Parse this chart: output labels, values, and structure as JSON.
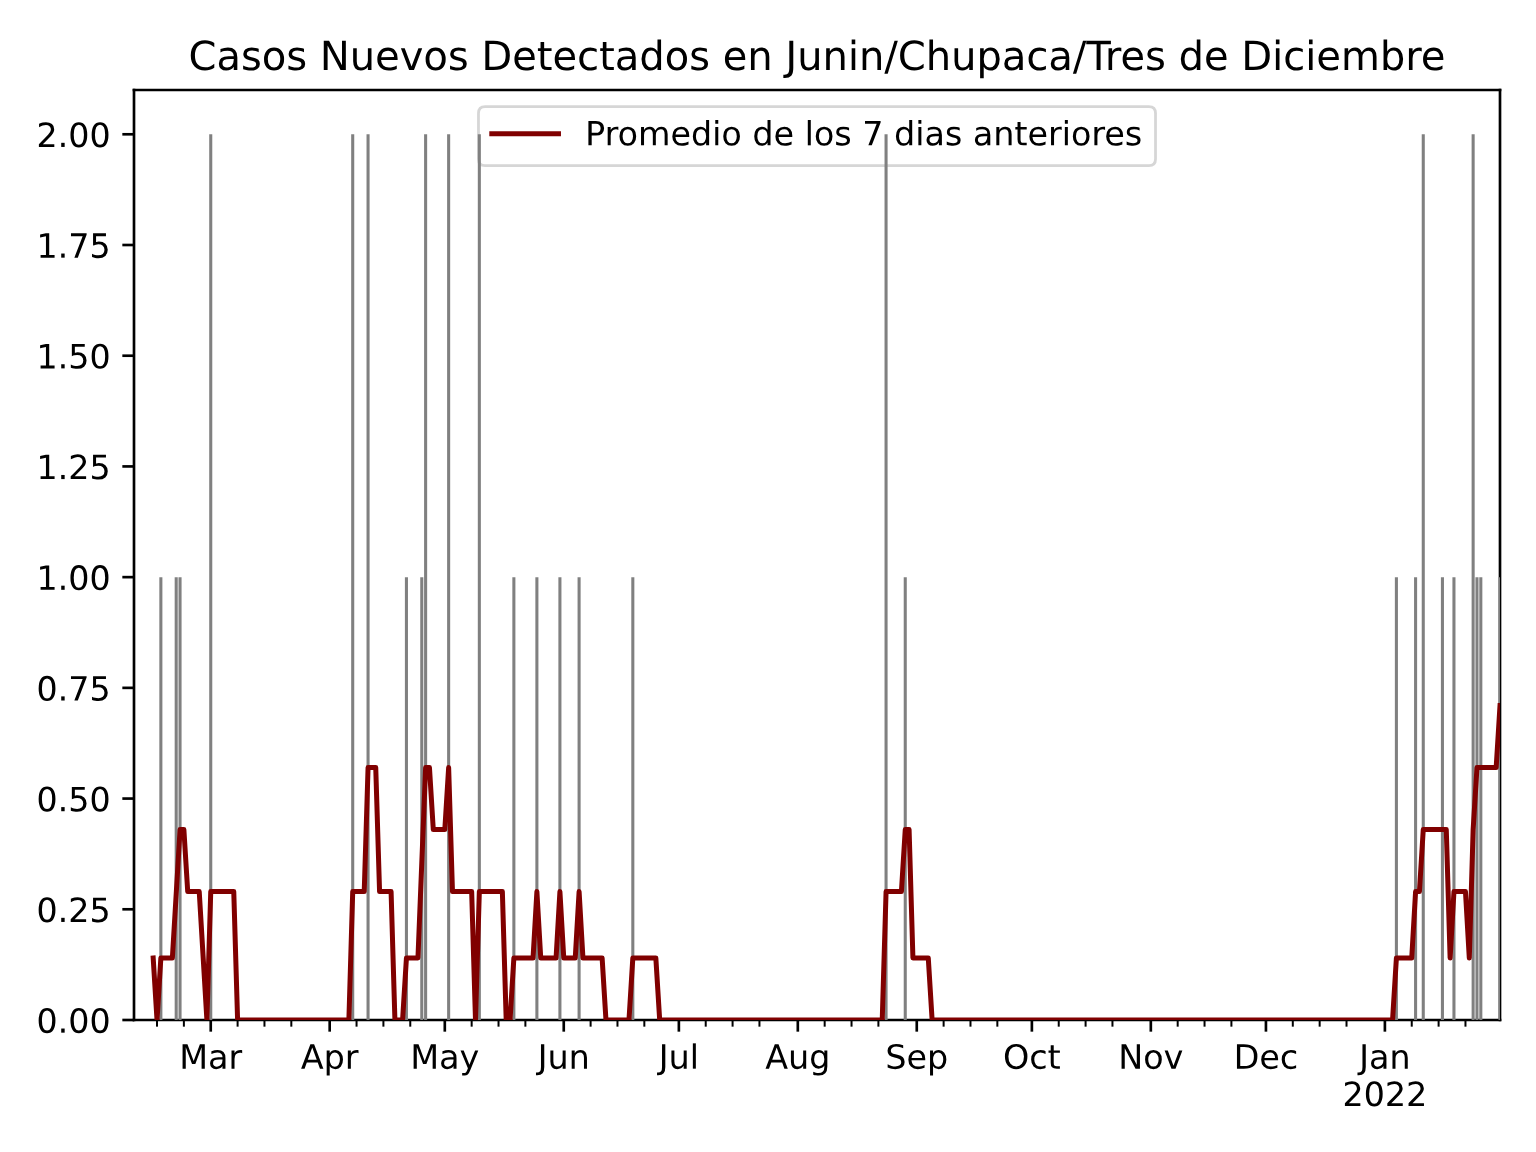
{
  "chart_data": {
    "type": "bar",
    "title": "Casos Nuevos Detectados en Junin/Chupaca/Tres de Diciembre",
    "series": [
      {
        "color": "#808080",
        "x": [
          "2021-02-16",
          "2021-02-20",
          "2021-02-21",
          "2021-03-01",
          "2021-04-07",
          "2021-04-11",
          "2021-04-21",
          "2021-04-25",
          "2021-04-26",
          "2021-05-02",
          "2021-05-10",
          "2021-05-19",
          "2021-05-25",
          "2021-05-31",
          "2021-06-05",
          "2021-06-19",
          "2021-08-24",
          "2021-08-29",
          "2022-01-04",
          "2022-01-09",
          "2022-01-11",
          "2022-01-16",
          "2022-01-19",
          "2022-01-24",
          "2022-01-25",
          "2022-01-26",
          "2022-01-31"
        ],
        "values": [
          1,
          1,
          1,
          2,
          2,
          2,
          1,
          1,
          2,
          2,
          2,
          1,
          1,
          1,
          1,
          1,
          2,
          1,
          1,
          1,
          2,
          1,
          1,
          2,
          1,
          1,
          1
        ]
      },
      {
        "type": "line",
        "name": "Promedio de los 7 dias anteriores",
        "color": "#800000",
        "x": [
          "2021-02-14",
          "2021-02-15",
          "2021-02-16",
          "2021-02-19",
          "2021-02-21",
          "2021-02-22",
          "2021-02-23",
          "2021-02-26",
          "2021-02-28",
          "2021-03-01",
          "2021-03-07",
          "2021-03-08",
          "2021-04-06",
          "2021-04-07",
          "2021-04-10",
          "2021-04-11",
          "2021-04-13",
          "2021-04-14",
          "2021-04-17",
          "2021-04-18",
          "2021-04-20",
          "2021-04-21",
          "2021-04-24",
          "2021-04-26",
          "2021-04-27",
          "2021-04-28",
          "2021-05-01",
          "2021-05-02",
          "2021-05-03",
          "2021-05-08",
          "2021-05-09",
          "2021-05-10",
          "2021-05-16",
          "2021-05-17",
          "2021-05-18",
          "2021-05-19",
          "2021-05-24",
          "2021-05-25",
          "2021-05-26",
          "2021-05-30",
          "2021-05-31",
          "2021-06-01",
          "2021-06-04",
          "2021-06-05",
          "2021-06-06",
          "2021-06-11",
          "2021-06-12",
          "2021-06-18",
          "2021-06-19",
          "2021-06-25",
          "2021-06-26",
          "2021-08-23",
          "2021-08-24",
          "2021-08-28",
          "2021-08-29",
          "2021-08-30",
          "2021-08-31",
          "2021-09-04",
          "2021-09-05",
          "2022-01-03",
          "2022-01-04",
          "2022-01-08",
          "2022-01-09",
          "2022-01-10",
          "2022-01-11",
          "2022-01-17",
          "2022-01-18",
          "2022-01-19",
          "2022-01-22",
          "2022-01-23",
          "2022-01-24",
          "2022-01-25",
          "2022-01-30",
          "2022-01-31"
        ],
        "values": [
          0.14,
          0,
          0.14,
          0.14,
          0.43,
          0.43,
          0.29,
          0.29,
          0,
          0.29,
          0.29,
          0,
          0,
          0.29,
          0.29,
          0.57,
          0.57,
          0.29,
          0.29,
          0,
          0,
          0.14,
          0.14,
          0.57,
          0.57,
          0.43,
          0.43,
          0.57,
          0.29,
          0.29,
          0,
          0.29,
          0.29,
          0,
          0,
          0.14,
          0.14,
          0.29,
          0.14,
          0.14,
          0.29,
          0.14,
          0.14,
          0.29,
          0.14,
          0.14,
          0,
          0,
          0.14,
          0.14,
          0,
          0,
          0.29,
          0.29,
          0.43,
          0.43,
          0.14,
          0.14,
          0,
          0,
          0.14,
          0.14,
          0.29,
          0.29,
          0.43,
          0.43,
          0.14,
          0.29,
          0.29,
          0.14,
          0.43,
          0.57,
          0.57,
          0.71
        ]
      }
    ],
    "xlim": [
      "2021-02-09",
      "2022-01-31"
    ],
    "xticks": [
      {
        "value": "2021-02-15",
        "label": null
      },
      {
        "value": "2021-02-22",
        "label": null
      },
      {
        "value": "2021-03-01",
        "label": "Mar"
      },
      {
        "value": "2021-03-08",
        "label": null
      },
      {
        "value": "2021-03-15",
        "label": null
      },
      {
        "value": "2021-03-22",
        "label": null
      },
      {
        "value": "2021-04-01",
        "label": "Apr"
      },
      {
        "value": "2021-04-08",
        "label": null
      },
      {
        "value": "2021-04-15",
        "label": null
      },
      {
        "value": "2021-04-22",
        "label": null
      },
      {
        "value": "2021-05-01",
        "label": "May"
      },
      {
        "value": "2021-05-08",
        "label": null
      },
      {
        "value": "2021-05-15",
        "label": null
      },
      {
        "value": "2021-05-22",
        "label": null
      },
      {
        "value": "2021-06-01",
        "label": "Jun"
      },
      {
        "value": "2021-06-08",
        "label": null
      },
      {
        "value": "2021-06-15",
        "label": null
      },
      {
        "value": "2021-06-22",
        "label": null
      },
      {
        "value": "2021-07-01",
        "label": "Jul"
      },
      {
        "value": "2021-07-08",
        "label": null
      },
      {
        "value": "2021-07-15",
        "label": null
      },
      {
        "value": "2021-07-22",
        "label": null
      },
      {
        "value": "2021-08-01",
        "label": "Aug"
      },
      {
        "value": "2021-08-08",
        "label": null
      },
      {
        "value": "2021-08-15",
        "label": null
      },
      {
        "value": "2021-08-22",
        "label": null
      },
      {
        "value": "2021-09-01",
        "label": "Sep"
      },
      {
        "value": "2021-09-08",
        "label": null
      },
      {
        "value": "2021-09-15",
        "label": null
      },
      {
        "value": "2021-09-22",
        "label": null
      },
      {
        "value": "2021-10-01",
        "label": "Oct"
      },
      {
        "value": "2021-10-08",
        "label": null
      },
      {
        "value": "2021-10-15",
        "label": null
      },
      {
        "value": "2021-10-22",
        "label": null
      },
      {
        "value": "2021-11-01",
        "label": "Nov"
      },
      {
        "value": "2021-11-08",
        "label": null
      },
      {
        "value": "2021-11-15",
        "label": null
      },
      {
        "value": "2021-11-22",
        "label": null
      },
      {
        "value": "2021-12-01",
        "label": "Dec"
      },
      {
        "value": "2021-12-08",
        "label": null
      },
      {
        "value": "2021-12-15",
        "label": null
      },
      {
        "value": "2021-12-22",
        "label": null
      },
      {
        "value": "2022-01-01",
        "label": "Jan\n2022"
      },
      {
        "value": "2022-01-08",
        "label": null
      },
      {
        "value": "2022-01-15",
        "label": null
      },
      {
        "value": "2022-01-22",
        "label": null
      }
    ],
    "ylim": [
      0,
      2.1
    ],
    "yticks": [
      {
        "value": 0,
        "label": "0.00"
      },
      {
        "value": 0.25,
        "label": "0.25"
      },
      {
        "value": 0.5,
        "label": "0.50"
      },
      {
        "value": 0.75,
        "label": "0.75"
      },
      {
        "value": 1,
        "label": "1.00"
      },
      {
        "value": 1.25,
        "label": "1.25"
      },
      {
        "value": 1.5,
        "label": "1.50"
      },
      {
        "value": 1.75,
        "label": "1.75"
      },
      {
        "value": 2,
        "label": "2.00"
      }
    ],
    "legend": "top"
  }
}
